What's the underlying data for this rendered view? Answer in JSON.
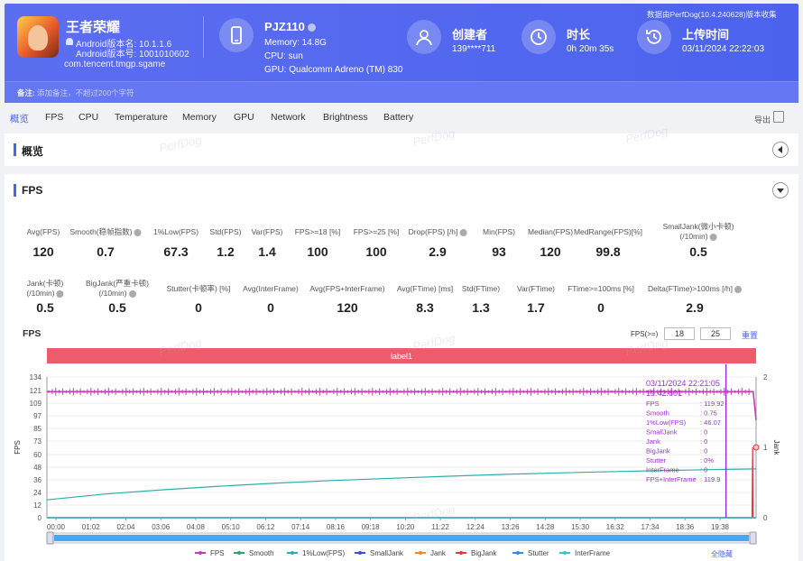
{
  "header": {
    "app_name": "王者荣耀",
    "android_version": "Android版本名: 10.1.1.6",
    "android_code": "Android版本号: 1001010602",
    "package": "com.tencent.tmgp.sgame",
    "device": {
      "name": "PJZ110",
      "memory": "Memory: 14.8G",
      "cpu": "CPU: sun",
      "gpu": "GPU: Qualcomm Adreno (TM) 830"
    },
    "creator": {
      "title": "创建者",
      "value": "139****711"
    },
    "duration": {
      "title": "时长",
      "value": "0h 20m 35s"
    },
    "upload": {
      "title": "上传时间",
      "value": "03/11/2024 22:22:03"
    },
    "source_note": "数据由PerfDog(10.4.240628)版本收集",
    "remark_label": "备注:",
    "remark_placeholder": "添加备注，不超过200个字符"
  },
  "tabs": [
    "概览",
    "FPS",
    "CPU",
    "Temperature",
    "Memory",
    "GPU",
    "Network",
    "Brightness",
    "Battery"
  ],
  "export_label": "导出",
  "overview": {
    "title": "概览"
  },
  "fps_panel": {
    "title": "FPS",
    "metrics_row1": [
      {
        "label": "Avg(FPS)",
        "value": "120",
        "help": false
      },
      {
        "label": "Smooth(稳帧指数)",
        "value": "0.7",
        "help": true
      },
      {
        "label": "1%Low(FPS)",
        "value": "67.3",
        "help": false
      },
      {
        "label": "Std(FPS)",
        "value": "1.2",
        "help": false
      },
      {
        "label": "Var(FPS)",
        "value": "1.4",
        "help": false
      },
      {
        "label": "FPS>=18 [%]",
        "value": "100",
        "help": false
      },
      {
        "label": "FPS>=25 [%]",
        "value": "100",
        "help": false
      },
      {
        "label": "Drop(FPS) [/h]",
        "value": "2.9",
        "help": true
      },
      {
        "label": "Min(FPS)",
        "value": "93",
        "help": false
      },
      {
        "label": "Median(FPS)",
        "value": "120",
        "help": false
      },
      {
        "label": "MedRange(FPS)[%]",
        "value": "99.8",
        "help": false
      },
      {
        "label": "SmallJank(微小卡顿)",
        "label2": "(/10min)",
        "value": "0.5",
        "help": true
      }
    ],
    "metrics_row2": [
      {
        "label": "Jank(卡顿)",
        "label2": "(/10min)",
        "value": "0.5",
        "help": true
      },
      {
        "label": "BigJank(严重卡顿)",
        "label2": "(/10min)",
        "value": "0.5",
        "help": true
      },
      {
        "label": "Stutter(卡顿率) [%]",
        "value": "0",
        "help": false
      },
      {
        "label": "Avg(InterFrame)",
        "value": "0",
        "help": false
      },
      {
        "label": "Avg(FPS+InterFrame)",
        "value": "120",
        "help": false
      },
      {
        "label": "Avg(FTime) [ms]",
        "value": "8.3",
        "help": false
      },
      {
        "label": "Std(FTime)",
        "value": "1.3",
        "help": false
      },
      {
        "label": "Var(FTime)",
        "value": "1.7",
        "help": false
      },
      {
        "label": "FTime>=100ms [%]",
        "value": "0",
        "help": false
      },
      {
        "label": "Delta(FTime)>100ms [/h]",
        "value": "2.9",
        "help": true
      }
    ],
    "chart_title": "FPS",
    "fps_threshold_label": "FPS(>=)",
    "fps_threshold_1": "18",
    "fps_threshold_2": "25",
    "reset_label": "重置",
    "label_bar": "label1",
    "hide_all_label": "全隐藏"
  },
  "watermark": "PerfDog",
  "tooltip": {
    "time": "03/11/2024 22:21:05",
    "elapsed": "19:42.601",
    "rows": [
      {
        "k": "FPS",
        "v": ": 119.92"
      },
      {
        "k": "Smooth",
        "v": ": 0.75"
      },
      {
        "k": "1%Low(FPS)",
        "v": ": 46.07"
      },
      {
        "k": "SmallJank",
        "v": ": 0"
      },
      {
        "k": "Jank",
        "v": ": 0"
      },
      {
        "k": "BigJank",
        "v": ": 0"
      },
      {
        "k": "Stutter",
        "v": ": 0%"
      },
      {
        "k": "InterFrame",
        "v": ": 0"
      },
      {
        "k": "FPS+InterFrame",
        "v": ": 119.9"
      }
    ]
  },
  "colors": {
    "accent": "#4c63ee",
    "fps": "#c040b8",
    "smooth": "#2fa36b",
    "low": "#2ab0a8",
    "smalljank": "#3a4fd6",
    "jank": "#f08a24",
    "bigjank": "#e03a3a",
    "stutter": "#3a86e8",
    "interframe": "#35c6c6",
    "labelbar": "#ef5b6a"
  },
  "chart_data": {
    "type": "line",
    "title": "FPS",
    "ylabel": "FPS",
    "y2label": "Jank",
    "ylim": [
      0,
      134
    ],
    "y_ticks": [
      0,
      12,
      24,
      36,
      48,
      60,
      73,
      85,
      97,
      109,
      121,
      134
    ],
    "y2lim": [
      0,
      2
    ],
    "y2_ticks": [
      0,
      1,
      2
    ],
    "x_ticks": [
      "00:00",
      "01:02",
      "02:04",
      "03:06",
      "04:08",
      "05:10",
      "06:12",
      "07:14",
      "08:16",
      "09:18",
      "10:20",
      "11:22",
      "12:24",
      "13:26",
      "14:28",
      "15:30",
      "16:32",
      "17:34",
      "18:36",
      "19:38"
    ],
    "x_range_seconds": [
      0,
      1235
    ],
    "cursor_seconds": 1182.6,
    "series": [
      {
        "name": "FPS",
        "x": [
          0,
          100,
          200,
          300,
          400,
          500,
          600,
          700,
          800,
          900,
          1000,
          1100,
          1182,
          1200,
          1230,
          1235
        ],
        "values": [
          120,
          120,
          120,
          120,
          120,
          120,
          120,
          120,
          120,
          120,
          120,
          120,
          119.92,
          120,
          120,
          93
        ]
      },
      {
        "name": "Smooth",
        "x": [
          0,
          1235
        ],
        "values": [
          0,
          0
        ]
      },
      {
        "name": "1%Low(FPS)",
        "x": [
          0,
          100,
          200,
          300,
          400,
          500,
          600,
          700,
          800,
          900,
          1000,
          1100,
          1182,
          1235
        ],
        "values": [
          17,
          22.5,
          26.5,
          30,
          33,
          35.5,
          37.5,
          39.5,
          41.3,
          42.8,
          44.1,
          45.2,
          46.07,
          46.5
        ]
      },
      {
        "name": "SmallJank",
        "x": [
          0,
          1235
        ],
        "values": [
          0,
          0
        ]
      },
      {
        "name": "Jank",
        "x": [
          0,
          1228,
          1229,
          1230,
          1235
        ],
        "values": [
          0,
          0,
          0,
          0,
          0
        ]
      },
      {
        "name": "BigJank",
        "x": [
          0,
          1228,
          1229,
          1230,
          1235
        ],
        "values": [
          0,
          0,
          1,
          0,
          0
        ]
      },
      {
        "name": "Stutter",
        "x": [
          0,
          1235
        ],
        "values": [
          0,
          0
        ]
      },
      {
        "name": "InterFrame",
        "x": [
          0,
          1235
        ],
        "values": [
          0,
          0
        ]
      }
    ],
    "legend": "bottom"
  }
}
